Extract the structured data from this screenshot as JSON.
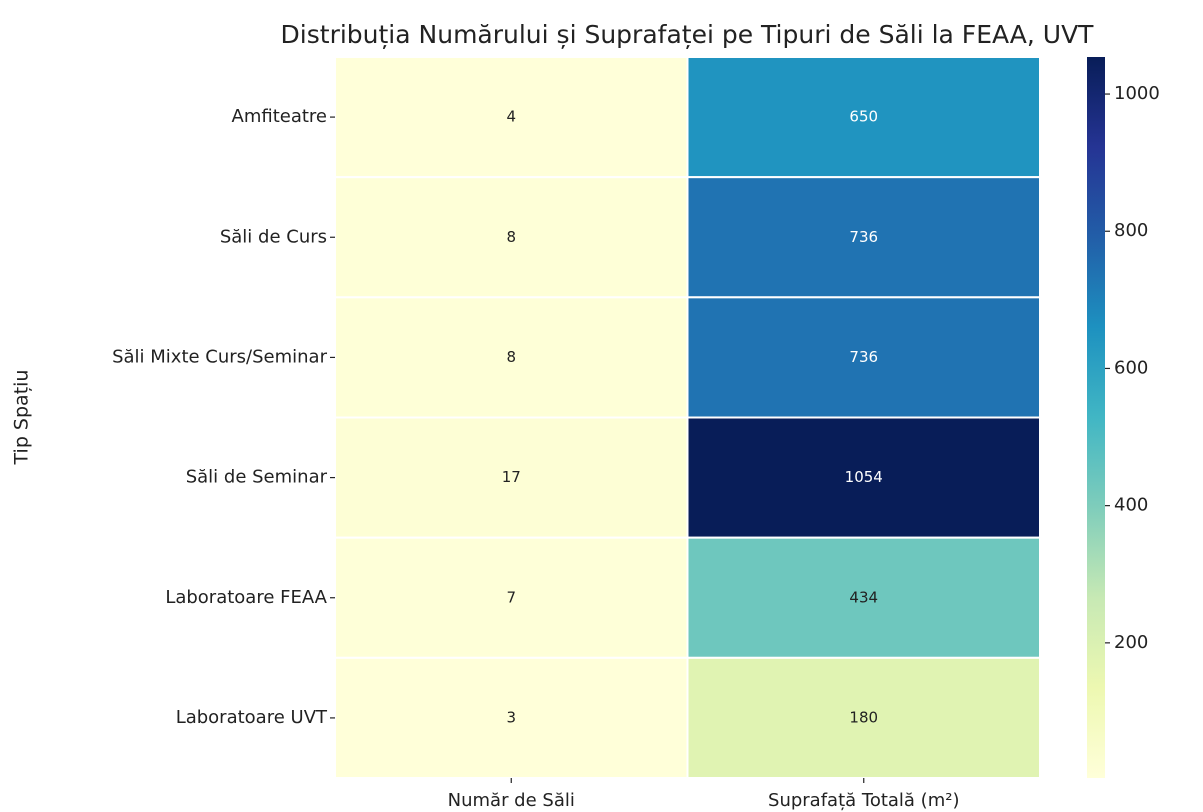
{
  "chart_data": {
    "type": "heatmap",
    "title": "Distribuția Numărului și Suprafaței pe Tipuri de Săli la FEAA, UVT",
    "ylabel": "Tip Spațiu",
    "x_categories": [
      "Număr de Săli",
      "Suprafață Totală (m²)"
    ],
    "y_categories": [
      "Amfiteatre",
      "Săli de Curs",
      "Săli Mixte Curs/Seminar",
      "Săli de Seminar",
      "Laboratoare FEAA",
      "Laboratoare UVT"
    ],
    "values": [
      [
        4,
        650
      ],
      [
        8,
        736
      ],
      [
        8,
        736
      ],
      [
        17,
        1054
      ],
      [
        7,
        434
      ],
      [
        3,
        180
      ]
    ],
    "colormap": "YlGnBu",
    "colorbar_lim": [
      3,
      1054
    ],
    "colorbar_ticks": [
      200,
      400,
      600,
      800,
      1000
    ]
  }
}
